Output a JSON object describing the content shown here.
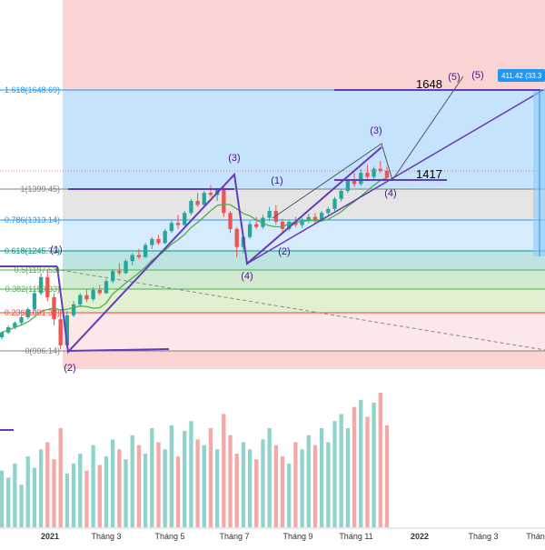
{
  "chart_data": {
    "type": "candlestick",
    "x_axis_labels": [
      "2021",
      "Tháng 3",
      "Tháng 5",
      "Tháng 7",
      "Tháng 9",
      "Tháng 11",
      "2022",
      "Tháng 3",
      "Tháng"
    ],
    "fib_levels": [
      {
        "ratio": 1.618,
        "price": 1648.69,
        "label": "1.618(1648.69)",
        "color": "#2196f3"
      },
      {
        "ratio": 1,
        "price": 1399.45,
        "label": "1(1399.45)",
        "color": "#808080"
      },
      {
        "ratio": 0.786,
        "price": 1313.14,
        "label": "0.786(1313.14)",
        "color": "#2196f3"
      },
      {
        "ratio": 0.618,
        "price": 1245.73,
        "label": "0.618(1245.73)",
        "color": "#009688"
      },
      {
        "ratio": 0.5,
        "price": 1197.53,
        "label": "0.5(1197.53)",
        "color": "#4caf50"
      },
      {
        "ratio": 0.382,
        "price": 1150.33,
        "label": "0.382(1150.33)",
        "color": "#4caf50"
      },
      {
        "ratio": 0.236,
        "price": 1091.32,
        "label": "0.236(1091.32)",
        "color": "#f44336"
      },
      {
        "ratio": 0,
        "price": 996.14,
        "label": "0(996.14)",
        "color": "#808080"
      }
    ],
    "wave_labels": [
      "(1)",
      "(2)",
      "(3)",
      "(4)",
      "(1)",
      "(2)",
      "(3)",
      "(4)",
      "(5)",
      "(5)"
    ],
    "annotations": {
      "target": "1648",
      "support": "1417",
      "measure": "411.42 (33.3"
    },
    "candles": [
      [
        1030,
        1045,
        1025,
        1042
      ],
      [
        1042,
        1060,
        1038,
        1055
      ],
      [
        1055,
        1070,
        1050,
        1066
      ],
      [
        1066,
        1085,
        1060,
        1080
      ],
      [
        1080,
        1105,
        1075,
        1100
      ],
      [
        1100,
        1150,
        1095,
        1140
      ],
      [
        1140,
        1190,
        1135,
        1180
      ],
      [
        1180,
        1200,
        1120,
        1130
      ],
      [
        1130,
        1140,
        1060,
        1075
      ],
      [
        1075,
        1100,
        1000,
        1010
      ],
      [
        1010,
        1095,
        1000,
        1085
      ],
      [
        1085,
        1120,
        1080,
        1112
      ],
      [
        1112,
        1140,
        1105,
        1135
      ],
      [
        1135,
        1150,
        1118,
        1125
      ],
      [
        1125,
        1155,
        1120,
        1148
      ],
      [
        1148,
        1160,
        1135,
        1140
      ],
      [
        1140,
        1175,
        1138,
        1170
      ],
      [
        1170,
        1200,
        1165,
        1195
      ],
      [
        1195,
        1215,
        1185,
        1190
      ],
      [
        1190,
        1225,
        1188,
        1220
      ],
      [
        1220,
        1240,
        1210,
        1235
      ],
      [
        1235,
        1250,
        1225,
        1230
      ],
      [
        1230,
        1265,
        1228,
        1260
      ],
      [
        1260,
        1280,
        1250,
        1275
      ],
      [
        1275,
        1285,
        1260,
        1265
      ],
      [
        1265,
        1300,
        1262,
        1295
      ],
      [
        1295,
        1320,
        1290,
        1315
      ],
      [
        1315,
        1335,
        1300,
        1310
      ],
      [
        1310,
        1345,
        1308,
        1340
      ],
      [
        1340,
        1375,
        1335,
        1370
      ],
      [
        1370,
        1390,
        1355,
        1360
      ],
      [
        1360,
        1395,
        1358,
        1390
      ],
      [
        1390,
        1410,
        1380,
        1385
      ],
      [
        1385,
        1402,
        1370,
        1400
      ],
      [
        1400,
        1405,
        1330,
        1340
      ],
      [
        1340,
        1345,
        1290,
        1300
      ],
      [
        1300,
        1305,
        1230,
        1255
      ],
      [
        1255,
        1290,
        1240,
        1280
      ],
      [
        1280,
        1320,
        1275,
        1312
      ],
      [
        1312,
        1330,
        1300,
        1305
      ],
      [
        1305,
        1335,
        1300,
        1328
      ],
      [
        1328,
        1355,
        1320,
        1345
      ],
      [
        1345,
        1360,
        1310,
        1318
      ],
      [
        1318,
        1325,
        1290,
        1300
      ],
      [
        1300,
        1322,
        1295,
        1318
      ],
      [
        1318,
        1330,
        1305,
        1310
      ],
      [
        1310,
        1328,
        1302,
        1322
      ],
      [
        1322,
        1338,
        1315,
        1330
      ],
      [
        1330,
        1340,
        1315,
        1322
      ],
      [
        1322,
        1345,
        1320,
        1340
      ],
      [
        1340,
        1355,
        1335,
        1350
      ],
      [
        1350,
        1380,
        1345,
        1375
      ],
      [
        1375,
        1400,
        1368,
        1395
      ],
      [
        1395,
        1425,
        1390,
        1420
      ],
      [
        1420,
        1440,
        1405,
        1412
      ],
      [
        1412,
        1450,
        1408,
        1440
      ],
      [
        1440,
        1460,
        1425,
        1430
      ],
      [
        1430,
        1455,
        1422,
        1450
      ],
      [
        1450,
        1470,
        1440,
        1445
      ],
      [
        1445,
        1455,
        1420,
        1428
      ]
    ],
    "volume": [
      40,
      35,
      45,
      30,
      50,
      42,
      55,
      60,
      48,
      70,
      38,
      45,
      52,
      40,
      58,
      44,
      50,
      62,
      55,
      48,
      65,
      58,
      52,
      70,
      60,
      55,
      72,
      50,
      68,
      75,
      62,
      58,
      70,
      55,
      80,
      65,
      52,
      60,
      55,
      48,
      62,
      70,
      58,
      50,
      45,
      60,
      55,
      65,
      58,
      70,
      60,
      75,
      80,
      70,
      85,
      90,
      78,
      88,
      95,
      72
    ],
    "price_ylim": [
      950,
      1720
    ],
    "grid": false
  },
  "colors": {
    "up": "#26a69a",
    "down": "#ef5350",
    "up_volume": "#8fd3cc",
    "down_volume": "#f4a9a6",
    "wave_line": "#673ab7",
    "ma_line": "#4caf50",
    "measure_bg": "#2196f3"
  },
  "icons": []
}
